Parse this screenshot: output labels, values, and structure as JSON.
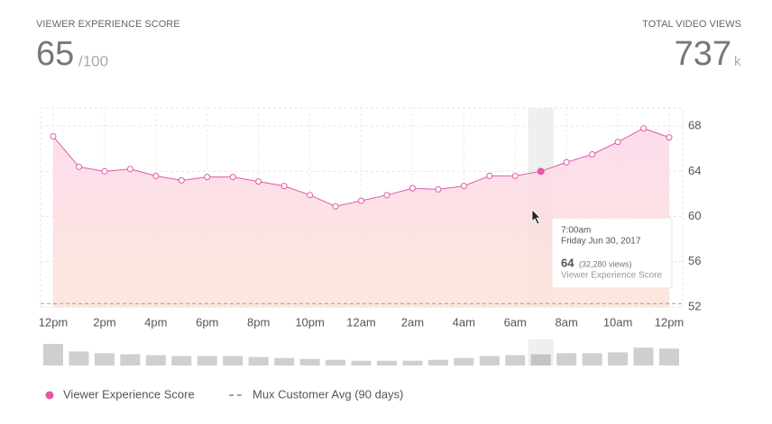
{
  "header": {
    "score_title": "VIEWER EXPERIENCE SCORE",
    "score": 65,
    "score_suffix": "/100",
    "views_title": "TOTAL VIDEO VIEWS",
    "views": 737,
    "views_suffix": "k"
  },
  "chart_data": [
    {
      "type": "line",
      "categories": [
        "12pm",
        null,
        "2pm",
        null,
        "4pm",
        null,
        "6pm",
        null,
        "8pm",
        null,
        "10pm",
        null,
        "12am",
        null,
        "2am",
        null,
        "4am",
        null,
        "6am",
        null,
        "8am",
        null,
        "10am",
        null,
        "12pm"
      ],
      "series": [
        {
          "name": "Viewer Experience Score",
          "color": "#e05aa8",
          "values": [
            67.1,
            64.4,
            64.0,
            64.2,
            63.6,
            63.2,
            63.5,
            63.5,
            63.1,
            62.7,
            61.9,
            60.9,
            61.4,
            61.9,
            62.5,
            62.4,
            62.7,
            63.6,
            63.6,
            64,
            64.8,
            65.5,
            66.6,
            67.8,
            67.0
          ]
        }
      ],
      "reference_lines": [
        {
          "name": "Mux Customer Avg (90 days)",
          "value": 52.3,
          "color": "#9a9ab0"
        }
      ],
      "ylim": [
        52,
        69.6
      ],
      "yticks": [
        52,
        56,
        60,
        64,
        68
      ],
      "grid": true,
      "tooltip": {
        "index": 19,
        "time": "7:00am",
        "date": "Friday Jun 30, 2017",
        "value": 64,
        "views_label": "(32,280 views)",
        "series_name": "Viewer Experience Score"
      }
    },
    {
      "type": "bar",
      "color": "#cfcfcf",
      "values": [
        62100,
        40500,
        35100,
        32400,
        29700,
        27000,
        27000,
        27000,
        24300,
        21600,
        18900,
        16200,
        13500,
        13500,
        13500,
        16200,
        21600,
        27000,
        29700,
        32280,
        35100,
        35100,
        37800,
        51300,
        48600
      ]
    }
  ]
}
